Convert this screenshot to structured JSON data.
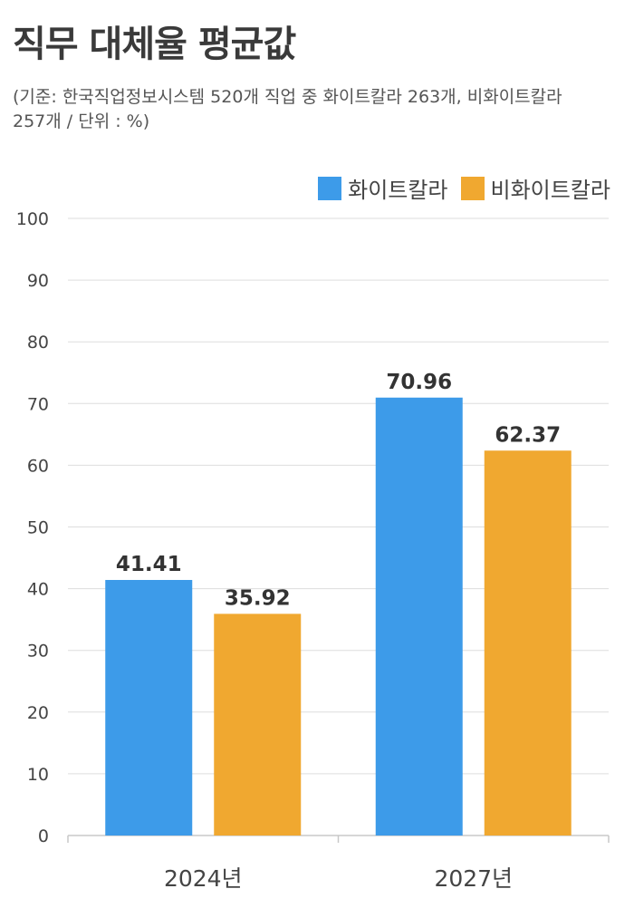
{
  "chart_data": {
    "type": "bar",
    "title": "직무 대체율 평균값",
    "subtitle": "(기준: 한국직업정보시스템  520개 직업 중 화이트칼라 263개, 비화이트칼라 257개 / 단위 : %)",
    "categories": [
      "2024년",
      "2027년"
    ],
    "series": [
      {
        "name": "화이트칼라",
        "values": [
          41.41,
          70.96
        ],
        "color": "#3d9be9",
        "value_labels": [
          "41.41",
          "70.96"
        ]
      },
      {
        "name": "비화이트칼라",
        "values": [
          35.92,
          62.37
        ],
        "color": "#f0a830",
        "value_labels": [
          "35.92",
          "62.37"
        ]
      }
    ],
    "ylim": [
      0,
      100
    ],
    "yticks": [
      "0",
      "10",
      "20",
      "30",
      "40",
      "50",
      "60",
      "70",
      "80",
      "90",
      "100"
    ],
    "grid": true,
    "legend_position": "top-right",
    "xlabel": "",
    "ylabel": ""
  }
}
